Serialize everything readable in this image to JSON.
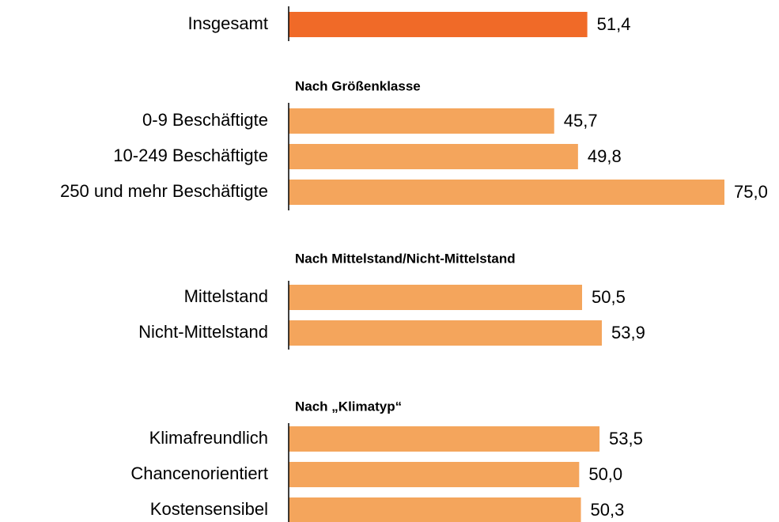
{
  "chart_data": {
    "type": "bar",
    "orientation": "horizontal",
    "groups": [
      {
        "categories": [
          "Insgesamt"
        ],
        "values": [
          51.4
        ],
        "value_labels": [
          "51,4"
        ],
        "color": "#f06a28"
      },
      {
        "title": "Nach Größenklasse",
        "categories": [
          "0-9 Beschäftigte",
          "10-249 Beschäftigte",
          "250 und mehr Beschäftigte"
        ],
        "values": [
          45.7,
          49.8,
          75.0
        ],
        "value_labels": [
          "45,7",
          "49,8",
          "75,0"
        ],
        "color": "#f4a55c"
      },
      {
        "title": "Nach Mittelstand/Nicht-Mittelstand",
        "categories": [
          "Mittelstand",
          "Nicht-Mittelstand"
        ],
        "values": [
          50.5,
          53.9
        ],
        "value_labels": [
          "50,5",
          "53,9"
        ],
        "color": "#f4a55c"
      },
      {
        "title": "Nach „Klimatyp“",
        "categories": [
          "Klimafreundlich",
          "Chancenorientiert",
          "Kostensensibel"
        ],
        "values": [
          53.5,
          50.0,
          50.3
        ],
        "value_labels": [
          "53,5",
          "50,0",
          "50,3"
        ],
        "color": "#f4a55c"
      }
    ]
  }
}
